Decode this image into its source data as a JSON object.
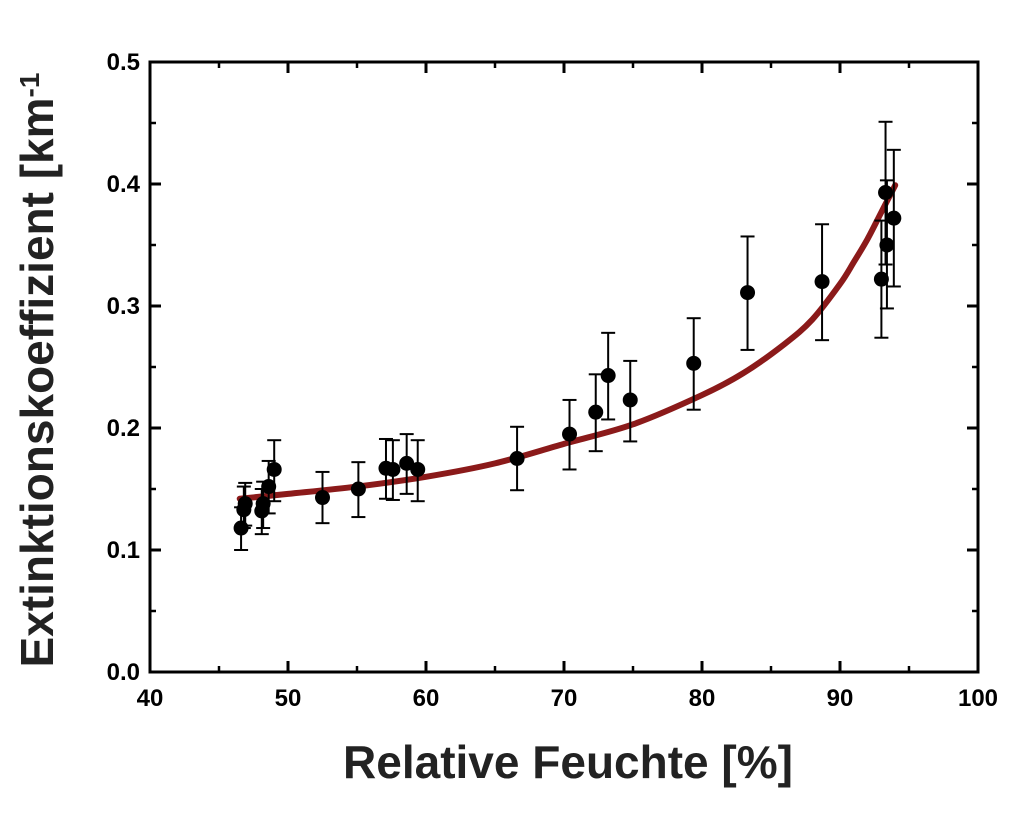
{
  "chart_data": {
    "type": "scatter",
    "title": "",
    "xlabel": "Relative Feuchte [%]",
    "ylabel_main": "Extinktionskoeffizient [km",
    "ylabel_sup": "-1",
    "xlim": [
      40,
      100
    ],
    "ylim": [
      0.0,
      0.5
    ],
    "x_ticks": [
      40,
      50,
      60,
      70,
      80,
      90,
      100
    ],
    "y_ticks": [
      0.0,
      0.1,
      0.2,
      0.3,
      0.4,
      0.5
    ],
    "y_tick_labels": [
      "0.0",
      "0.1",
      "0.2",
      "0.3",
      "0.4",
      "0.5"
    ],
    "grid": false,
    "legend": "none",
    "series": [
      {
        "points": [
          {
            "x": 46.6,
            "y": 0.118,
            "err_low": 0.1,
            "err_high": 0.135
          },
          {
            "x": 46.8,
            "y": 0.133,
            "err_low": 0.118,
            "err_high": 0.152
          },
          {
            "x": 46.9,
            "y": 0.138,
            "err_low": 0.12,
            "err_high": 0.155
          },
          {
            "x": 48.1,
            "y": 0.132,
            "err_low": 0.113,
            "err_high": 0.15
          },
          {
            "x": 48.2,
            "y": 0.138,
            "err_low": 0.118,
            "err_high": 0.156
          },
          {
            "x": 48.6,
            "y": 0.152,
            "err_low": 0.13,
            "err_high": 0.173
          },
          {
            "x": 49.0,
            "y": 0.166,
            "err_low": 0.14,
            "err_high": 0.19
          },
          {
            "x": 52.5,
            "y": 0.143,
            "err_low": 0.122,
            "err_high": 0.164
          },
          {
            "x": 55.1,
            "y": 0.15,
            "err_low": 0.127,
            "err_high": 0.172
          },
          {
            "x": 57.1,
            "y": 0.167,
            "err_low": 0.142,
            "err_high": 0.191
          },
          {
            "x": 57.6,
            "y": 0.166,
            "err_low": 0.141,
            "err_high": 0.19
          },
          {
            "x": 58.6,
            "y": 0.171,
            "err_low": 0.146,
            "err_high": 0.195
          },
          {
            "x": 59.4,
            "y": 0.166,
            "err_low": 0.14,
            "err_high": 0.19
          },
          {
            "x": 66.6,
            "y": 0.175,
            "err_low": 0.149,
            "err_high": 0.201
          },
          {
            "x": 70.4,
            "y": 0.195,
            "err_low": 0.166,
            "err_high": 0.223
          },
          {
            "x": 72.3,
            "y": 0.213,
            "err_low": 0.181,
            "err_high": 0.244
          },
          {
            "x": 73.2,
            "y": 0.243,
            "err_low": 0.207,
            "err_high": 0.278
          },
          {
            "x": 74.8,
            "y": 0.223,
            "err_low": 0.189,
            "err_high": 0.255
          },
          {
            "x": 79.4,
            "y": 0.253,
            "err_low": 0.215,
            "err_high": 0.29
          },
          {
            "x": 83.3,
            "y": 0.311,
            "err_low": 0.264,
            "err_high": 0.357
          },
          {
            "x": 88.7,
            "y": 0.32,
            "err_low": 0.272,
            "err_high": 0.367
          },
          {
            "x": 93.0,
            "y": 0.322,
            "err_low": 0.274,
            "err_high": 0.37
          },
          {
            "x": 93.3,
            "y": 0.393,
            "err_low": 0.334,
            "err_high": 0.451
          },
          {
            "x": 93.4,
            "y": 0.35,
            "err_low": 0.298,
            "err_high": 0.403
          },
          {
            "x": 93.9,
            "y": 0.372,
            "err_low": 0.316,
            "err_high": 0.428
          }
        ]
      }
    ],
    "fit_curve": {
      "x": [
        46.5,
        50,
        55,
        60,
        65,
        70,
        75,
        80,
        83,
        86,
        88,
        90,
        91,
        92,
        93,
        94
      ],
      "y": [
        0.142,
        0.146,
        0.152,
        0.16,
        0.171,
        0.187,
        0.203,
        0.227,
        0.245,
        0.269,
        0.289,
        0.318,
        0.336,
        0.355,
        0.377,
        0.399
      ]
    },
    "colors": {
      "points": "#000000",
      "fit": "#8b1a1a",
      "axis": "#000000"
    }
  }
}
